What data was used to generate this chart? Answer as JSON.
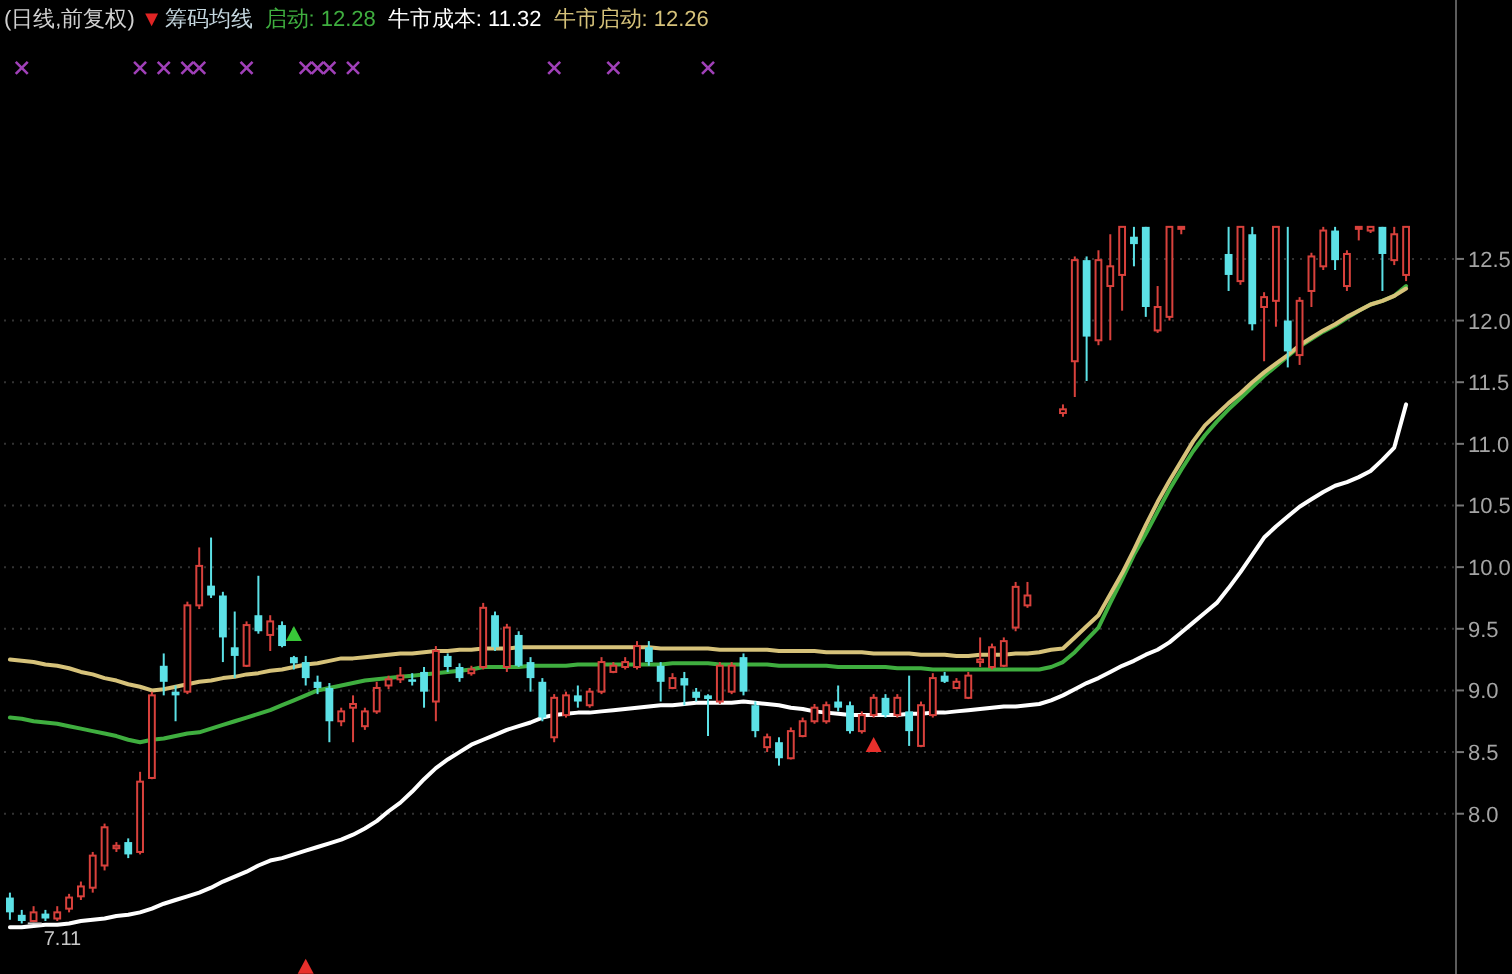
{
  "chart_data": {
    "type": "candlestick",
    "title": "(日线,前复权)",
    "subtitle": "筹码均线",
    "grid": "y",
    "tick_labels": "y",
    "ylim": [
      6.7,
      14.6
    ],
    "yticks": [
      {
        "value": 8,
        "label": "8.0"
      },
      8.5,
      {
        "value": 9,
        "label": "9.0"
      },
      9.5,
      {
        "value": 10,
        "label": "10.0"
      },
      10.5,
      {
        "value": 11,
        "label": "11.0"
      },
      11.5,
      {
        "value": 12,
        "label": "12.0"
      },
      12.5
    ],
    "annotations": [
      "▼",
      {
        "text": "7.11",
        "y": 7.11
      }
    ],
    "categories": [
      null,
      null,
      null,
      null,
      null,
      null,
      null,
      null,
      null,
      null,
      null,
      null,
      null,
      null,
      null,
      null,
      null,
      null,
      null,
      null,
      null,
      null,
      null,
      null,
      null,
      null,
      null,
      null,
      null,
      null,
      null,
      null,
      null,
      null,
      null,
      null,
      null,
      null,
      null,
      null,
      null,
      null,
      null,
      null,
      null,
      null,
      null,
      null,
      null,
      null,
      null,
      null,
      null,
      null,
      null,
      null,
      null,
      null,
      null,
      null,
      null,
      null,
      null,
      null,
      null,
      null,
      null,
      null,
      null,
      null,
      null,
      null,
      null,
      null,
      null,
      null,
      null,
      null,
      null,
      null,
      null,
      null,
      null,
      null,
      null,
      null,
      null,
      null,
      null,
      null,
      null,
      null,
      null,
      null,
      null,
      null,
      null,
      null,
      null,
      null,
      null,
      null,
      null,
      null,
      null,
      null,
      null,
      null,
      null,
      null,
      null,
      null,
      null,
      null,
      null,
      null,
      null,
      null,
      null
    ],
    "ohlc": [
      [
        7.32,
        7.36,
        7.14,
        7.2
      ],
      [
        7.18,
        7.22,
        7.11,
        7.13
      ],
      [
        7.13,
        7.25,
        7.12,
        7.2
      ],
      [
        7.19,
        7.22,
        7.13,
        7.15
      ],
      [
        7.15,
        7.25,
        7.13,
        7.2
      ],
      [
        7.23,
        7.35,
        7.2,
        7.32
      ],
      [
        7.33,
        7.45,
        7.3,
        7.41
      ],
      [
        7.4,
        7.69,
        7.36,
        7.66
      ],
      [
        7.58,
        7.92,
        7.54,
        7.89
      ],
      [
        7.72,
        7.77,
        7.69,
        7.74
      ],
      [
        7.77,
        7.8,
        7.64,
        7.67
      ],
      [
        7.69,
        8.34,
        7.67,
        8.26
      ],
      [
        8.29,
        8.99,
        8.28,
        8.96
      ],
      [
        9.2,
        9.3,
        8.96,
        9.07
      ],
      [
        8.99,
        9.04,
        8.75,
        8.96
      ],
      [
        8.99,
        9.72,
        8.97,
        9.69
      ],
      [
        9.69,
        10.16,
        9.66,
        10.01
      ],
      [
        9.85,
        10.24,
        9.75,
        9.77
      ],
      [
        9.77,
        9.8,
        9.23,
        9.43
      ],
      [
        9.35,
        9.64,
        9.1,
        9.28
      ],
      [
        9.2,
        9.56,
        9.19,
        9.53
      ],
      [
        9.61,
        9.93,
        9.46,
        9.48
      ],
      [
        9.45,
        9.61,
        9.32,
        9.56
      ],
      [
        9.53,
        9.56,
        9.35,
        9.36
      ],
      [
        9.27,
        9.28,
        9.17,
        9.22
      ],
      [
        9.23,
        9.28,
        9.04,
        9.1
      ],
      [
        9.07,
        9.12,
        8.97,
        9.02
      ],
      [
        9.02,
        9.06,
        8.58,
        8.75
      ],
      [
        8.75,
        8.86,
        8.71,
        8.83
      ],
      [
        8.86,
        8.96,
        8.58,
        8.89
      ],
      [
        8.71,
        8.86,
        8.68,
        8.83
      ],
      [
        8.83,
        9.07,
        8.81,
        9.02
      ],
      [
        9.04,
        9.12,
        9.01,
        9.09
      ],
      [
        9.09,
        9.19,
        9.06,
        9.12
      ],
      [
        9.09,
        9.14,
        9.04,
        9.07
      ],
      [
        9.15,
        9.19,
        8.86,
        8.99
      ],
      [
        8.91,
        9.36,
        8.75,
        9.32
      ],
      [
        9.28,
        9.3,
        9.15,
        9.19
      ],
      [
        9.19,
        9.22,
        9.07,
        9.1
      ],
      [
        9.14,
        9.2,
        9.12,
        9.17
      ],
      [
        9.19,
        9.71,
        9.17,
        9.67
      ],
      [
        9.61,
        9.64,
        9.32,
        9.35
      ],
      [
        9.19,
        9.54,
        9.15,
        9.51
      ],
      [
        9.45,
        9.48,
        9.19,
        9.2
      ],
      [
        9.23,
        9.27,
        8.99,
        9.1
      ],
      [
        9.07,
        9.1,
        8.75,
        8.78
      ],
      [
        8.62,
        8.97,
        8.58,
        8.94
      ],
      [
        8.8,
        8.99,
        8.78,
        8.96
      ],
      [
        8.96,
        9.04,
        8.86,
        8.91
      ],
      [
        8.88,
        9.02,
        8.86,
        8.99
      ],
      [
        8.99,
        9.27,
        8.97,
        9.23
      ],
      [
        9.15,
        9.23,
        9.14,
        9.2
      ],
      [
        9.19,
        9.27,
        9.17,
        9.23
      ],
      [
        9.19,
        9.4,
        9.17,
        9.36
      ],
      [
        9.35,
        9.4,
        9.2,
        9.23
      ],
      [
        9.2,
        9.23,
        8.91,
        9.07
      ],
      [
        9.02,
        9.14,
        9.01,
        9.1
      ],
      [
        9.1,
        9.15,
        8.88,
        9.04
      ],
      [
        8.99,
        9.02,
        8.91,
        8.94
      ],
      [
        8.96,
        8.97,
        8.63,
        8.93
      ],
      [
        8.91,
        9.23,
        8.89,
        9.2
      ],
      [
        8.99,
        9.23,
        8.97,
        9.2
      ],
      [
        9.27,
        9.3,
        8.96,
        8.99
      ],
      [
        8.88,
        8.91,
        8.62,
        8.67
      ],
      [
        8.54,
        8.65,
        8.5,
        8.62
      ],
      [
        8.58,
        8.62,
        8.39,
        8.45
      ],
      [
        8.45,
        8.7,
        8.44,
        8.67
      ],
      [
        8.63,
        8.78,
        8.62,
        8.75
      ],
      [
        8.75,
        8.89,
        8.73,
        8.86
      ],
      [
        8.75,
        8.91,
        8.73,
        8.88
      ],
      [
        8.91,
        9.04,
        8.83,
        8.86
      ],
      [
        8.88,
        8.91,
        8.65,
        8.67
      ],
      [
        8.67,
        8.83,
        8.65,
        8.8
      ],
      [
        8.8,
        8.97,
        8.78,
        8.94
      ],
      [
        8.94,
        8.97,
        8.78,
        8.8
      ],
      [
        8.8,
        8.97,
        8.78,
        8.94
      ],
      [
        8.83,
        9.12,
        8.55,
        8.67
      ],
      [
        8.55,
        8.91,
        8.54,
        8.88
      ],
      [
        8.8,
        9.14,
        8.78,
        9.1
      ],
      [
        9.12,
        9.15,
        9.06,
        9.07
      ],
      [
        9.02,
        9.1,
        9.01,
        9.07
      ],
      [
        8.94,
        9.15,
        8.93,
        9.12
      ],
      [
        9.23,
        9.43,
        9.19,
        9.25
      ],
      [
        9.19,
        9.38,
        9.17,
        9.35
      ],
      [
        9.2,
        9.43,
        9.19,
        9.4
      ],
      [
        9.51,
        9.88,
        9.48,
        9.84
      ],
      [
        9.69,
        9.88,
        9.67,
        9.77
      ],
      null,
      null,
      [
        11.25,
        11.32,
        11.22,
        11.28
      ],
      [
        11.67,
        12.52,
        11.38,
        12.49
      ],
      [
        12.49,
        12.52,
        11.51,
        11.87
      ],
      [
        11.84,
        12.57,
        11.8,
        12.49
      ],
      [
        12.28,
        12.7,
        11.84,
        12.44
      ],
      [
        12.37,
        12.76,
        12.08,
        12.76
      ],
      [
        12.68,
        12.76,
        12.44,
        12.62
      ],
      [
        12.76,
        12.76,
        12.03,
        12.11
      ],
      [
        11.92,
        12.28,
        11.9,
        12.11
      ],
      [
        12.03,
        12.76,
        12.0,
        12.76
      ],
      [
        12.76,
        12.76,
        12.7,
        12.76
      ],
      null,
      null,
      null,
      [
        12.54,
        12.76,
        12.24,
        12.37
      ],
      [
        12.32,
        12.76,
        12.29,
        12.76
      ],
      [
        12.7,
        12.76,
        11.92,
        11.97
      ],
      [
        12.11,
        12.23,
        11.67,
        12.19
      ],
      [
        12.16,
        12.76,
        11.95,
        12.76
      ],
      [
        12.0,
        12.76,
        11.62,
        11.75
      ],
      [
        11.72,
        12.19,
        11.64,
        12.16
      ],
      [
        12.24,
        12.55,
        12.11,
        12.52
      ],
      [
        12.44,
        12.76,
        12.41,
        12.73
      ],
      [
        12.73,
        12.76,
        12.41,
        12.49
      ],
      [
        12.28,
        12.57,
        12.24,
        12.54
      ],
      [
        12.76,
        12.76,
        12.65,
        12.76
      ],
      [
        12.73,
        12.76,
        12.71,
        12.76
      ],
      [
        12.76,
        12.76,
        12.24,
        12.54
      ],
      [
        12.49,
        12.76,
        12.45,
        12.7
      ],
      [
        12.37,
        12.76,
        12.32,
        12.76
      ]
    ],
    "colors": [
      "#5ce1e6",
      "#5ce1e6",
      "#d8413c",
      "#5ce1e6",
      "#d8413c",
      "#d8413c",
      "#d8413c",
      "#d8413c",
      "#d8413c",
      "#d8413c",
      "#5ce1e6",
      "#d8413c",
      "#d8413c",
      "#5ce1e6",
      "#5ce1e6",
      "#d8413c",
      "#d8413c",
      "#5ce1e6",
      "#5ce1e6",
      "#5ce1e6",
      "#d8413c",
      "#5ce1e6",
      "#d8413c",
      "#5ce1e6",
      "#5ce1e6",
      "#5ce1e6",
      "#5ce1e6",
      "#5ce1e6",
      "#d8413c",
      "#d8413c",
      "#d8413c",
      "#d8413c",
      "#d8413c",
      "#d8413c",
      "#5ce1e6",
      "#5ce1e6",
      "#d8413c",
      "#5ce1e6",
      "#5ce1e6",
      "#d8413c",
      "#d8413c",
      "#5ce1e6",
      "#d8413c",
      "#5ce1e6",
      "#5ce1e6",
      "#5ce1e6",
      "#d8413c",
      "#d8413c",
      "#5ce1e6",
      "#d8413c",
      "#d8413c",
      "#d8413c",
      "#d8413c",
      "#d8413c",
      "#5ce1e6",
      "#5ce1e6",
      "#d8413c",
      "#5ce1e6",
      "#5ce1e6",
      "#5ce1e6",
      "#d8413c",
      "#d8413c",
      "#5ce1e6",
      "#5ce1e6",
      "#d8413c",
      "#5ce1e6",
      "#d8413c",
      "#d8413c",
      "#d8413c",
      "#d8413c",
      "#5ce1e6",
      "#5ce1e6",
      "#d8413c",
      "#d8413c",
      "#5ce1e6",
      "#d8413c",
      "#5ce1e6",
      "#d8413c",
      "#d8413c",
      "#5ce1e6",
      "#d8413c",
      "#d8413c",
      "#d8413c",
      "#d8413c",
      "#d8413c",
      "#d8413c",
      "#d8413c",
      null,
      null,
      "#d8413c",
      "#d8413c",
      "#5ce1e6",
      "#d8413c",
      "#d8413c",
      "#d8413c",
      "#5ce1e6",
      "#5ce1e6",
      "#d8413c",
      "#d8413c",
      "#d8413c",
      null,
      null,
      null,
      "#5ce1e6",
      "#d8413c",
      "#5ce1e6",
      "#d8413c",
      "#d8413c",
      "#5ce1e6",
      "#d8413c",
      "#d8413c",
      "#d8413c",
      "#5ce1e6",
      "#d8413c",
      "#d8413c",
      "#d8413c",
      "#5ce1e6",
      "#d8413c",
      "#d8413c"
    ],
    "series": [
      {
        "type": "line",
        "name": "启动: 12.28",
        "color": "#3fae3f",
        "values": [
          8.78,
          8.77,
          8.75,
          8.74,
          8.73,
          8.71,
          8.69,
          8.67,
          8.65,
          8.63,
          8.6,
          8.58,
          8.6,
          8.61,
          8.63,
          8.65,
          8.66,
          8.69,
          8.72,
          8.75,
          8.78,
          8.81,
          8.84,
          8.88,
          8.92,
          8.96,
          9.0,
          9.02,
          9.04,
          9.06,
          9.08,
          9.09,
          9.1,
          9.11,
          9.12,
          9.13,
          9.14,
          9.15,
          9.16,
          9.17,
          9.19,
          9.19,
          9.19,
          9.19,
          9.2,
          9.2,
          9.2,
          9.2,
          9.21,
          9.21,
          9.21,
          9.21,
          9.21,
          9.21,
          9.21,
          9.21,
          9.22,
          9.22,
          9.22,
          9.22,
          9.21,
          9.21,
          9.21,
          9.21,
          9.21,
          9.2,
          9.2,
          9.2,
          9.2,
          9.2,
          9.19,
          9.19,
          9.19,
          9.19,
          9.19,
          9.18,
          9.18,
          9.18,
          9.17,
          9.17,
          9.17,
          9.17,
          9.17,
          9.17,
          9.17,
          9.17,
          9.17,
          9.17,
          9.19,
          9.23,
          9.31,
          9.41,
          9.51,
          9.71,
          9.9,
          10.1,
          10.27,
          10.45,
          10.63,
          10.79,
          10.94,
          11.07,
          11.18,
          11.28,
          11.37,
          11.46,
          11.55,
          11.63,
          11.71,
          11.79,
          11.85,
          11.91,
          11.96,
          12.02,
          12.08,
          12.13,
          12.16,
          12.2,
          12.28
        ]
      },
      {
        "type": "line",
        "name": "牛市成本: 11.32",
        "color": "#ffffff",
        "values": [
          7.08,
          7.08,
          7.09,
          7.1,
          7.1,
          7.11,
          7.13,
          7.14,
          7.15,
          7.17,
          7.18,
          7.2,
          7.23,
          7.27,
          7.3,
          7.33,
          7.36,
          7.4,
          7.45,
          7.49,
          7.53,
          7.58,
          7.62,
          7.64,
          7.67,
          7.7,
          7.73,
          7.76,
          7.79,
          7.83,
          7.88,
          7.94,
          8.02,
          8.09,
          8.18,
          8.28,
          8.37,
          8.44,
          8.5,
          8.56,
          8.6,
          8.64,
          8.68,
          8.71,
          8.74,
          8.78,
          8.8,
          8.81,
          8.82,
          8.82,
          8.83,
          8.84,
          8.85,
          8.86,
          8.87,
          8.88,
          8.88,
          8.89,
          8.9,
          8.9,
          8.9,
          8.9,
          8.91,
          8.9,
          8.89,
          8.88,
          8.86,
          8.85,
          8.83,
          8.82,
          8.81,
          8.8,
          8.8,
          8.8,
          8.8,
          8.8,
          8.81,
          8.81,
          8.82,
          8.82,
          8.83,
          8.84,
          8.85,
          8.86,
          8.87,
          8.87,
          8.88,
          8.89,
          8.92,
          8.96,
          9.01,
          9.06,
          9.1,
          9.15,
          9.2,
          9.24,
          9.29,
          9.33,
          9.39,
          9.47,
          9.55,
          9.63,
          9.71,
          9.83,
          9.96,
          10.1,
          10.24,
          10.33,
          10.41,
          10.49,
          10.55,
          10.61,
          10.66,
          10.69,
          10.73,
          10.78,
          10.87,
          10.97,
          11.32
        ]
      },
      {
        "type": "line",
        "name": "牛市启动: 12.26",
        "color": "#d6c27a",
        "values": [
          9.25,
          9.24,
          9.23,
          9.21,
          9.2,
          9.18,
          9.15,
          9.13,
          9.1,
          9.08,
          9.05,
          9.03,
          9.0,
          9.01,
          9.03,
          9.05,
          9.07,
          9.08,
          9.1,
          9.11,
          9.13,
          9.14,
          9.16,
          9.17,
          9.19,
          9.21,
          9.22,
          9.24,
          9.26,
          9.26,
          9.27,
          9.28,
          9.29,
          9.3,
          9.3,
          9.31,
          9.32,
          9.32,
          9.33,
          9.33,
          9.34,
          9.34,
          9.34,
          9.35,
          9.35,
          9.35,
          9.35,
          9.35,
          9.35,
          9.35,
          9.35,
          9.35,
          9.35,
          9.35,
          9.35,
          9.34,
          9.34,
          9.34,
          9.34,
          9.34,
          9.33,
          9.33,
          9.33,
          9.33,
          9.33,
          9.32,
          9.32,
          9.32,
          9.32,
          9.31,
          9.31,
          9.31,
          9.31,
          9.3,
          9.3,
          9.3,
          9.3,
          9.29,
          9.29,
          9.29,
          9.28,
          9.28,
          9.29,
          9.29,
          9.29,
          9.3,
          9.3,
          9.31,
          9.33,
          9.34,
          9.43,
          9.52,
          9.61,
          9.78,
          9.95,
          10.14,
          10.34,
          10.53,
          10.7,
          10.86,
          11.02,
          11.15,
          11.24,
          11.33,
          11.41,
          11.5,
          11.58,
          11.65,
          11.72,
          11.8,
          11.86,
          11.92,
          11.97,
          12.03,
          12.08,
          12.13,
          12.16,
          12.2,
          12.26
        ]
      },
      {
        "type": "scatter",
        "marker": "cross",
        "color": "#a040b8",
        "values": [
          null,
          14.05,
          null,
          null,
          null,
          null,
          null,
          null,
          null,
          null,
          null,
          14.05,
          null,
          14.05,
          null,
          14.05,
          14.05,
          null,
          null,
          null,
          14.05,
          null,
          null,
          null,
          null,
          14.05,
          14.05,
          14.05,
          null,
          14.05,
          null,
          null,
          null,
          null,
          null,
          null,
          null,
          null,
          null,
          null,
          null,
          null,
          null,
          null,
          null,
          null,
          14.05,
          null,
          null,
          null,
          null,
          14.05,
          null,
          null,
          null,
          null,
          null,
          null,
          null,
          14.05,
          null,
          null,
          null,
          null,
          null,
          null,
          null,
          null,
          null,
          null,
          null,
          null,
          null,
          null,
          null,
          null,
          null,
          null,
          null,
          null,
          null,
          null,
          null,
          null,
          null,
          null,
          null,
          null,
          null,
          null,
          null,
          null,
          null,
          null,
          null,
          null,
          null,
          null,
          null,
          null,
          null,
          null,
          null,
          null,
          null,
          null,
          null,
          null,
          null,
          null,
          null,
          null,
          null,
          null,
          null,
          null,
          null,
          null,
          null
        ]
      },
      {
        "type": "scatter",
        "marker": "triangle",
        "color": "#38c838",
        "values": [
          null,
          null,
          null,
          null,
          null,
          null,
          null,
          null,
          null,
          null,
          null,
          null,
          null,
          null,
          null,
          null,
          null,
          null,
          null,
          null,
          null,
          null,
          null,
          null,
          9.45,
          null,
          null,
          null,
          null,
          null,
          null,
          null,
          null,
          null,
          null,
          null,
          null,
          null,
          null,
          null,
          null,
          null,
          null,
          null,
          null,
          null,
          null,
          null,
          null,
          null,
          null,
          null,
          null,
          null,
          null,
          null,
          null,
          null,
          null,
          null,
          null,
          null,
          null,
          null,
          null,
          null,
          null,
          null,
          null,
          null,
          null,
          null,
          null,
          null,
          null,
          null,
          null,
          null,
          null,
          null,
          null,
          null,
          null,
          null,
          null,
          null,
          null,
          null,
          null,
          null,
          null,
          null,
          null,
          null,
          null,
          null,
          null,
          null,
          null,
          null,
          null,
          null,
          null,
          null,
          null,
          null,
          null,
          null,
          null,
          null,
          null,
          null,
          null,
          null,
          null,
          null,
          null,
          null,
          null
        ]
      },
      {
        "type": "scatter",
        "marker": "triangle",
        "color": "#e8302c",
        "values": [
          null,
          null,
          null,
          null,
          null,
          null,
          null,
          null,
          null,
          null,
          null,
          null,
          null,
          null,
          null,
          null,
          null,
          null,
          null,
          null,
          null,
          null,
          null,
          null,
          null,
          6.75,
          null,
          null,
          null,
          null,
          null,
          null,
          null,
          null,
          null,
          null,
          null,
          null,
          null,
          null,
          null,
          null,
          null,
          null,
          null,
          null,
          null,
          null,
          null,
          null,
          null,
          null,
          null,
          null,
          null,
          null,
          null,
          null,
          null,
          null,
          null,
          null,
          null,
          null,
          null,
          null,
          null,
          null,
          null,
          null,
          null,
          null,
          null,
          8.55,
          null,
          null,
          null,
          null,
          null,
          null,
          null,
          null,
          null,
          null,
          null,
          null,
          null,
          null,
          null,
          null,
          null,
          null,
          null,
          null,
          null,
          null,
          null,
          null,
          null,
          null,
          null,
          null,
          null,
          null,
          null,
          null,
          null,
          null,
          null,
          null,
          null,
          null,
          null,
          null,
          null,
          null,
          null,
          null,
          null
        ]
      }
    ]
  }
}
